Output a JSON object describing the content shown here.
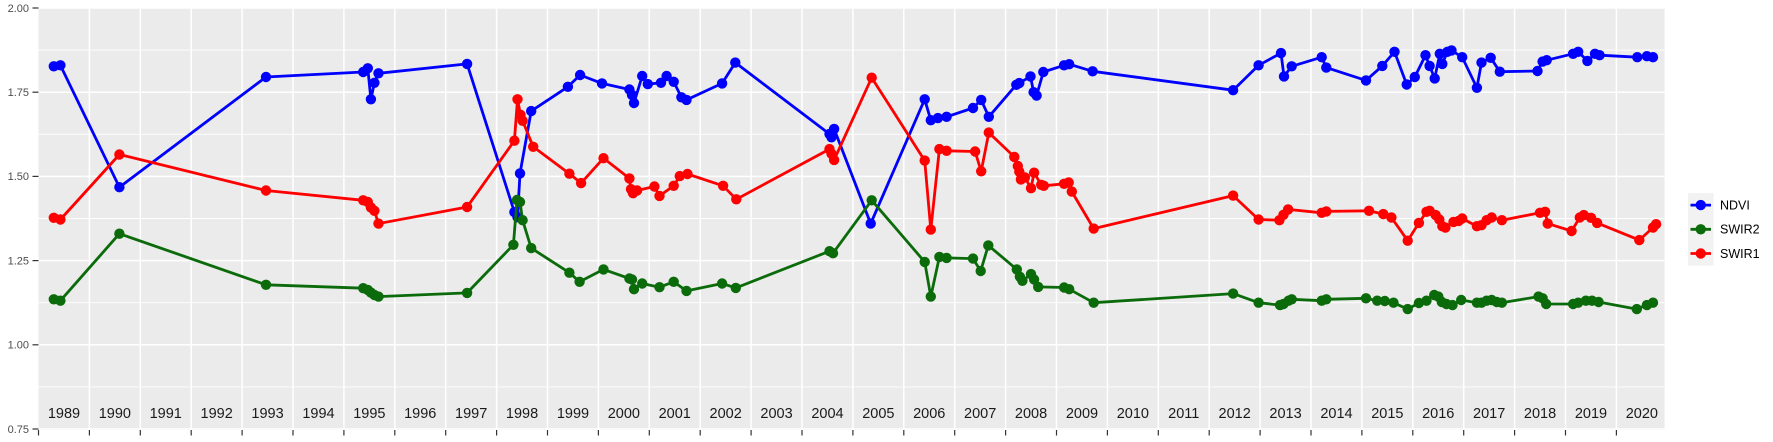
{
  "chart_data": {
    "type": "line",
    "title": "",
    "xlabel": "",
    "ylabel": "",
    "xlim": [
      1989.0,
      2020.95
    ],
    "ylim": [
      0.75,
      2.0
    ],
    "grid": true,
    "panel_background": "#EBEBEB",
    "grid_color": "#FFFFFF",
    "y_ticks": [
      2.0,
      1.75,
      1.5,
      1.25,
      1.0,
      0.75
    ],
    "y_tick_labels": [
      "2.00",
      "1.75",
      "1.50",
      "1.25",
      "1.00",
      "0.75"
    ],
    "y_minor_ticks": [
      1.875,
      1.625,
      1.375,
      1.125,
      0.875
    ],
    "x_tick_years": [
      1989,
      1990,
      1991,
      1992,
      1993,
      1994,
      1995,
      1996,
      1997,
      1998,
      1999,
      2000,
      2001,
      2002,
      2003,
      2004,
      2005,
      2006,
      2007,
      2008,
      2009,
      2010,
      2011,
      2012,
      2013,
      2014,
      2015,
      2016,
      2017,
      2018,
      2019,
      2020
    ],
    "x_tick_labels": [
      "1989",
      "1990",
      "1991",
      "1992",
      "1993",
      "1994",
      "1995",
      "1996",
      "1997",
      "1998",
      "1999",
      "2000",
      "2001",
      "2002",
      "2003",
      "2004",
      "2005",
      "2006",
      "2007",
      "2008",
      "2009",
      "2010",
      "2011",
      "2012",
      "2013",
      "2014",
      "2015",
      "2016",
      "2017",
      "2018",
      "2019",
      "2020"
    ],
    "axis_text_color_y": "#4D4D4D",
    "axis_text_color_x": "#1A1A1A",
    "tick_mark_color": "#333333",
    "legend_position": "right",
    "legend_key_background": "#F2F2F2",
    "series": [
      {
        "name": "NDVI",
        "color": "#0000FF",
        "points": [
          [
            1989.3,
            1.827
          ],
          [
            1989.43,
            1.83
          ],
          [
            1990.59,
            1.468
          ],
          [
            1993.47,
            1.795
          ],
          [
            1995.38,
            1.81
          ],
          [
            1995.47,
            1.821
          ],
          [
            1995.53,
            1.729
          ],
          [
            1995.6,
            1.778
          ],
          [
            1995.68,
            1.806
          ],
          [
            1997.42,
            1.834
          ],
          [
            1998.35,
            1.394
          ],
          [
            1998.41,
            1.379
          ],
          [
            1998.46,
            1.509
          ],
          [
            1998.68,
            1.694
          ],
          [
            1999.4,
            1.766
          ],
          [
            1999.64,
            1.801
          ],
          [
            2000.07,
            1.776
          ],
          [
            2000.61,
            1.758
          ],
          [
            2000.66,
            1.742
          ],
          [
            2000.7,
            1.718
          ],
          [
            2000.86,
            1.798
          ],
          [
            2000.97,
            1.774
          ],
          [
            2001.23,
            1.778
          ],
          [
            2001.34,
            1.798
          ],
          [
            2001.48,
            1.781
          ],
          [
            2001.63,
            1.735
          ],
          [
            2001.73,
            1.727
          ],
          [
            2002.43,
            1.776
          ],
          [
            2002.69,
            1.838
          ],
          [
            2004.54,
            1.626
          ],
          [
            2004.58,
            1.616
          ],
          [
            2004.63,
            1.641
          ],
          [
            2005.35,
            1.36
          ],
          [
            2006.41,
            1.729
          ],
          [
            2006.53,
            1.667
          ],
          [
            2006.67,
            1.673
          ],
          [
            2006.84,
            1.677
          ],
          [
            2007.36,
            1.703
          ],
          [
            2007.52,
            1.727
          ],
          [
            2007.67,
            1.677
          ],
          [
            2008.21,
            1.772
          ],
          [
            2008.27,
            1.777
          ],
          [
            2008.49,
            1.797
          ],
          [
            2008.55,
            1.75
          ],
          [
            2008.61,
            1.74
          ],
          [
            2008.74,
            1.81
          ],
          [
            2009.15,
            1.83
          ],
          [
            2009.25,
            1.833
          ],
          [
            2009.71,
            1.812
          ],
          [
            2012.47,
            1.756
          ],
          [
            2012.97,
            1.83
          ],
          [
            2013.41,
            1.866
          ],
          [
            2013.47,
            1.797
          ],
          [
            2013.62,
            1.827
          ],
          [
            2014.21,
            1.854
          ],
          [
            2014.3,
            1.823
          ],
          [
            2015.08,
            1.785
          ],
          [
            2015.4,
            1.828
          ],
          [
            2015.64,
            1.87
          ],
          [
            2015.88,
            1.773
          ],
          [
            2016.04,
            1.795
          ],
          [
            2016.25,
            1.86
          ],
          [
            2016.33,
            1.828
          ],
          [
            2016.43,
            1.791
          ],
          [
            2016.53,
            1.864
          ],
          [
            2016.58,
            1.834
          ],
          [
            2016.68,
            1.87
          ],
          [
            2016.76,
            1.874
          ],
          [
            2016.97,
            1.854
          ],
          [
            2017.26,
            1.763
          ],
          [
            2017.35,
            1.838
          ],
          [
            2017.53,
            1.852
          ],
          [
            2017.71,
            1.811
          ],
          [
            2018.45,
            1.813
          ],
          [
            2018.55,
            1.841
          ],
          [
            2018.63,
            1.845
          ],
          [
            2019.15,
            1.864
          ],
          [
            2019.25,
            1.87
          ],
          [
            2019.43,
            1.843
          ],
          [
            2019.58,
            1.864
          ],
          [
            2019.67,
            1.86
          ],
          [
            2020.41,
            1.854
          ],
          [
            2020.6,
            1.857
          ],
          [
            2020.72,
            1.854
          ]
        ]
      },
      {
        "name": "SWIR2",
        "color": "#0B6B0B",
        "points": [
          [
            1989.3,
            1.135
          ],
          [
            1989.43,
            1.131
          ],
          [
            1990.59,
            1.33
          ],
          [
            1993.47,
            1.178
          ],
          [
            1995.38,
            1.168
          ],
          [
            1995.47,
            1.163
          ],
          [
            1995.53,
            1.155
          ],
          [
            1995.6,
            1.148
          ],
          [
            1995.68,
            1.143
          ],
          [
            1997.42,
            1.154
          ],
          [
            1998.33,
            1.297
          ],
          [
            1998.4,
            1.43
          ],
          [
            1998.46,
            1.424
          ],
          [
            1998.51,
            1.37
          ],
          [
            1998.68,
            1.287
          ],
          [
            1999.43,
            1.214
          ],
          [
            1999.63,
            1.187
          ],
          [
            2000.1,
            1.224
          ],
          [
            2000.61,
            1.197
          ],
          [
            2000.66,
            1.194
          ],
          [
            2000.7,
            1.165
          ],
          [
            2000.86,
            1.182
          ],
          [
            2001.2,
            1.171
          ],
          [
            2001.48,
            1.187
          ],
          [
            2001.73,
            1.16
          ],
          [
            2002.43,
            1.182
          ],
          [
            2002.7,
            1.169
          ],
          [
            2004.54,
            1.278
          ],
          [
            2004.61,
            1.272
          ],
          [
            2005.37,
            1.429
          ],
          [
            2006.41,
            1.246
          ],
          [
            2006.53,
            1.143
          ],
          [
            2006.7,
            1.261
          ],
          [
            2006.84,
            1.258
          ],
          [
            2007.36,
            1.256
          ],
          [
            2007.51,
            1.219
          ],
          [
            2007.66,
            1.295
          ],
          [
            2008.22,
            1.224
          ],
          [
            2008.28,
            1.202
          ],
          [
            2008.33,
            1.19
          ],
          [
            2008.5,
            1.21
          ],
          [
            2008.56,
            1.194
          ],
          [
            2008.64,
            1.172
          ],
          [
            2009.15,
            1.17
          ],
          [
            2009.25,
            1.165
          ],
          [
            2009.73,
            1.125
          ],
          [
            2012.47,
            1.152
          ],
          [
            2012.97,
            1.125
          ],
          [
            2013.39,
            1.118
          ],
          [
            2013.46,
            1.121
          ],
          [
            2013.56,
            1.131
          ],
          [
            2013.62,
            1.135
          ],
          [
            2014.21,
            1.131
          ],
          [
            2014.3,
            1.135
          ],
          [
            2015.08,
            1.138
          ],
          [
            2015.3,
            1.131
          ],
          [
            2015.45,
            1.13
          ],
          [
            2015.62,
            1.125
          ],
          [
            2015.9,
            1.106
          ],
          [
            2016.12,
            1.124
          ],
          [
            2016.27,
            1.131
          ],
          [
            2016.42,
            1.148
          ],
          [
            2016.5,
            1.143
          ],
          [
            2016.57,
            1.127
          ],
          [
            2016.66,
            1.121
          ],
          [
            2016.78,
            1.118
          ],
          [
            2016.95,
            1.133
          ],
          [
            2017.26,
            1.125
          ],
          [
            2017.35,
            1.125
          ],
          [
            2017.45,
            1.131
          ],
          [
            2017.55,
            1.133
          ],
          [
            2017.65,
            1.127
          ],
          [
            2017.75,
            1.125
          ],
          [
            2018.47,
            1.143
          ],
          [
            2018.55,
            1.138
          ],
          [
            2018.62,
            1.121
          ],
          [
            2019.15,
            1.121
          ],
          [
            2019.25,
            1.125
          ],
          [
            2019.4,
            1.131
          ],
          [
            2019.52,
            1.131
          ],
          [
            2019.65,
            1.127
          ],
          [
            2020.4,
            1.106
          ],
          [
            2020.6,
            1.118
          ],
          [
            2020.72,
            1.125
          ]
        ]
      },
      {
        "name": "SWIR1",
        "color": "#FF0000",
        "points": [
          [
            1989.3,
            1.377
          ],
          [
            1989.43,
            1.372
          ],
          [
            1990.59,
            1.565
          ],
          [
            1993.47,
            1.458
          ],
          [
            1995.38,
            1.429
          ],
          [
            1995.47,
            1.424
          ],
          [
            1995.53,
            1.408
          ],
          [
            1995.6,
            1.398
          ],
          [
            1995.68,
            1.36
          ],
          [
            1997.42,
            1.409
          ],
          [
            1998.35,
            1.606
          ],
          [
            1998.41,
            1.729
          ],
          [
            1998.47,
            1.683
          ],
          [
            1998.51,
            1.665
          ],
          [
            1998.72,
            1.588
          ],
          [
            1999.43,
            1.508
          ],
          [
            1999.66,
            1.48
          ],
          [
            2000.1,
            1.554
          ],
          [
            2000.61,
            1.494
          ],
          [
            2000.64,
            1.462
          ],
          [
            2000.68,
            1.45
          ],
          [
            2000.76,
            1.458
          ],
          [
            2001.1,
            1.47
          ],
          [
            2001.2,
            1.442
          ],
          [
            2001.48,
            1.472
          ],
          [
            2001.6,
            1.501
          ],
          [
            2001.75,
            1.507
          ],
          [
            2002.45,
            1.472
          ],
          [
            2002.71,
            1.432
          ],
          [
            2004.54,
            1.581
          ],
          [
            2004.58,
            1.567
          ],
          [
            2004.63,
            1.549
          ],
          [
            2005.37,
            1.793
          ],
          [
            2006.41,
            1.547
          ],
          [
            2006.53,
            1.342
          ],
          [
            2006.7,
            1.581
          ],
          [
            2006.84,
            1.576
          ],
          [
            2007.4,
            1.574
          ],
          [
            2007.52,
            1.515
          ],
          [
            2007.67,
            1.63
          ],
          [
            2008.17,
            1.558
          ],
          [
            2008.24,
            1.531
          ],
          [
            2008.27,
            1.514
          ],
          [
            2008.3,
            1.491
          ],
          [
            2008.38,
            1.497
          ],
          [
            2008.5,
            1.465
          ],
          [
            2008.56,
            1.511
          ],
          [
            2008.7,
            1.475
          ],
          [
            2008.75,
            1.472
          ],
          [
            2009.15,
            1.478
          ],
          [
            2009.24,
            1.482
          ],
          [
            2009.3,
            1.455
          ],
          [
            2009.73,
            1.345
          ],
          [
            2012.47,
            1.443
          ],
          [
            2012.97,
            1.372
          ],
          [
            2013.38,
            1.37
          ],
          [
            2013.46,
            1.386
          ],
          [
            2013.55,
            1.402
          ],
          [
            2014.21,
            1.392
          ],
          [
            2014.3,
            1.396
          ],
          [
            2015.14,
            1.398
          ],
          [
            2015.42,
            1.388
          ],
          [
            2015.58,
            1.378
          ],
          [
            2015.9,
            1.309
          ],
          [
            2016.12,
            1.362
          ],
          [
            2016.27,
            1.395
          ],
          [
            2016.33,
            1.398
          ],
          [
            2016.45,
            1.385
          ],
          [
            2016.52,
            1.372
          ],
          [
            2016.58,
            1.352
          ],
          [
            2016.64,
            1.348
          ],
          [
            2016.8,
            1.365
          ],
          [
            2016.9,
            1.368
          ],
          [
            2016.97,
            1.375
          ],
          [
            2017.26,
            1.352
          ],
          [
            2017.35,
            1.355
          ],
          [
            2017.45,
            1.37
          ],
          [
            2017.55,
            1.378
          ],
          [
            2017.75,
            1.37
          ],
          [
            2018.5,
            1.392
          ],
          [
            2018.6,
            1.395
          ],
          [
            2018.65,
            1.36
          ],
          [
            2019.12,
            1.338
          ],
          [
            2019.28,
            1.378
          ],
          [
            2019.36,
            1.385
          ],
          [
            2019.5,
            1.377
          ],
          [
            2019.62,
            1.362
          ],
          [
            2020.45,
            1.311
          ],
          [
            2020.72,
            1.348
          ],
          [
            2020.78,
            1.358
          ]
        ]
      }
    ],
    "legend": {
      "entries": [
        {
          "label": "NDVI",
          "color": "#0000FF"
        },
        {
          "label": "SWIR2",
          "color": "#0B6B0B"
        },
        {
          "label": "SWIR1",
          "color": "#FF0000"
        }
      ]
    }
  }
}
